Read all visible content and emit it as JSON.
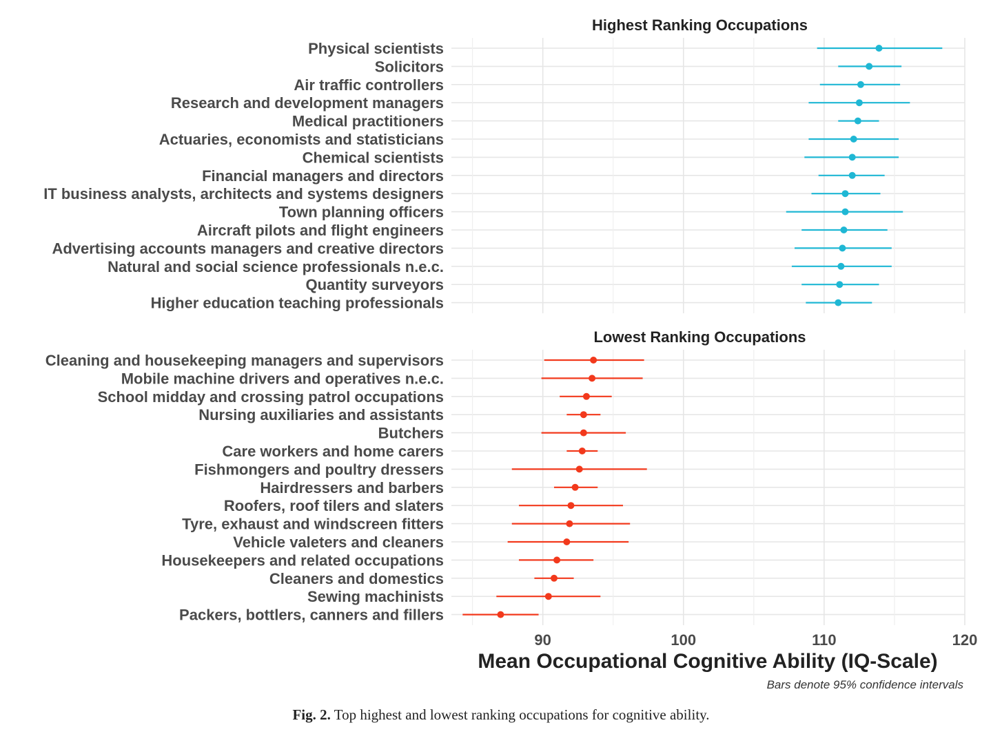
{
  "chart_data": {
    "type": "dot-errorbar",
    "xlabel": "Mean Occupational Cognitive Ability (IQ-Scale)",
    "xlim": [
      83.5,
      120
    ],
    "xticks": [
      "90",
      "100",
      "110",
      "120"
    ],
    "note": "Bars denote 95% confidence intervals",
    "panels": [
      {
        "title": "Highest Ranking Occupations",
        "color": "#1fb7d4",
        "occupations": [
          {
            "label": "Physical scientists",
            "mean": 113.9,
            "lo": 109.5,
            "hi": 118.4
          },
          {
            "label": "Solicitors",
            "mean": 113.2,
            "lo": 111.0,
            "hi": 115.5
          },
          {
            "label": "Air traffic controllers",
            "mean": 112.6,
            "lo": 109.7,
            "hi": 115.4
          },
          {
            "label": "Research and development managers",
            "mean": 112.5,
            "lo": 108.9,
            "hi": 116.1
          },
          {
            "label": "Medical practitioners",
            "mean": 112.4,
            "lo": 111.0,
            "hi": 113.9
          },
          {
            "label": "Actuaries, economists and statisticians",
            "mean": 112.1,
            "lo": 108.9,
            "hi": 115.3
          },
          {
            "label": "Chemical scientists",
            "mean": 112.0,
            "lo": 108.6,
            "hi": 115.3
          },
          {
            "label": "Financial managers and directors",
            "mean": 112.0,
            "lo": 109.6,
            "hi": 114.3
          },
          {
            "label": "IT business analysts, architects and systems designers",
            "mean": 111.5,
            "lo": 109.1,
            "hi": 114.0
          },
          {
            "label": "Town planning officers",
            "mean": 111.5,
            "lo": 107.3,
            "hi": 115.6
          },
          {
            "label": "Aircraft pilots and flight engineers",
            "mean": 111.4,
            "lo": 108.4,
            "hi": 114.5
          },
          {
            "label": "Advertising accounts managers and creative directors",
            "mean": 111.3,
            "lo": 107.9,
            "hi": 114.8
          },
          {
            "label": "Natural and social science professionals n.e.c.",
            "mean": 111.2,
            "lo": 107.7,
            "hi": 114.8
          },
          {
            "label": "Quantity surveyors",
            "mean": 111.1,
            "lo": 108.4,
            "hi": 113.9
          },
          {
            "label": "Higher education teaching professionals",
            "mean": 111.0,
            "lo": 108.7,
            "hi": 113.4
          }
        ]
      },
      {
        "title": "Lowest Ranking Occupations",
        "color": "#f2391c",
        "occupations": [
          {
            "label": "Cleaning and housekeeping managers and supervisors",
            "mean": 93.6,
            "lo": 90.1,
            "hi": 97.2
          },
          {
            "label": "Mobile machine drivers and operatives n.e.c.",
            "mean": 93.5,
            "lo": 89.9,
            "hi": 97.1
          },
          {
            "label": "School midday and crossing patrol occupations",
            "mean": 93.1,
            "lo": 91.2,
            "hi": 94.9
          },
          {
            "label": "Nursing auxiliaries and assistants",
            "mean": 92.9,
            "lo": 91.7,
            "hi": 94.1
          },
          {
            "label": "Butchers",
            "mean": 92.9,
            "lo": 89.9,
            "hi": 95.9
          },
          {
            "label": "Care workers and home carers",
            "mean": 92.8,
            "lo": 91.7,
            "hi": 93.9
          },
          {
            "label": "Fishmongers and poultry dressers",
            "mean": 92.6,
            "lo": 87.8,
            "hi": 97.4
          },
          {
            "label": "Hairdressers and barbers",
            "mean": 92.3,
            "lo": 90.8,
            "hi": 93.9
          },
          {
            "label": "Roofers, roof tilers and slaters",
            "mean": 92.0,
            "lo": 88.3,
            "hi": 95.7
          },
          {
            "label": "Tyre, exhaust and windscreen fitters",
            "mean": 91.9,
            "lo": 87.8,
            "hi": 96.2
          },
          {
            "label": "Vehicle valeters and cleaners",
            "mean": 91.7,
            "lo": 87.5,
            "hi": 96.1
          },
          {
            "label": "Housekeepers and related occupations",
            "mean": 91.0,
            "lo": 88.3,
            "hi": 93.6
          },
          {
            "label": "Cleaners and domestics",
            "mean": 90.8,
            "lo": 89.4,
            "hi": 92.2
          },
          {
            "label": "Sewing machinists",
            "mean": 90.4,
            "lo": 86.7,
            "hi": 94.1
          },
          {
            "label": "Packers, bottlers, canners and fillers",
            "mean": 87.0,
            "lo": 84.3,
            "hi": 89.7
          }
        ]
      }
    ]
  },
  "caption": {
    "label": "Fig. 2.",
    "text": "Top highest and lowest ranking occupations for cognitive ability."
  }
}
